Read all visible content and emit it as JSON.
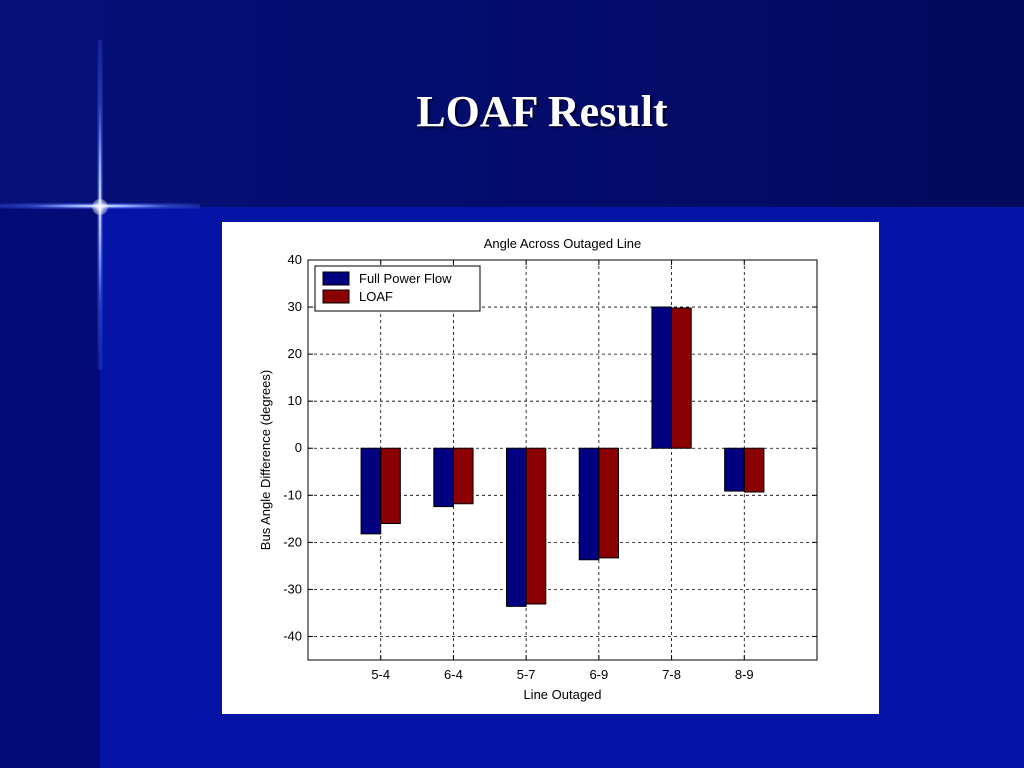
{
  "slide": {
    "title": "LOAF Result"
  },
  "colors": {
    "slide_background": "#0513a6",
    "series_full_power_flow": "#000080",
    "series_loaf": "#8b0000"
  },
  "chart_data": {
    "type": "bar",
    "title": "Angle Across Outaged Line",
    "xlabel": "Line Outaged",
    "ylabel": "Bus Angle Difference (degrees)",
    "categories": [
      "5-4",
      "6-4",
      "5-7",
      "6-9",
      "7-8",
      "8-9"
    ],
    "series": [
      {
        "name": "Full Power Flow",
        "values": [
          -18.2,
          -12.4,
          -33.6,
          -23.7,
          30.0,
          -9.1
        ]
      },
      {
        "name": "LOAF",
        "values": [
          -16.0,
          -11.8,
          -33.1,
          -23.3,
          29.8,
          -9.3
        ]
      }
    ],
    "ylim": [
      -45,
      40
    ],
    "yticks": [
      40,
      30,
      20,
      10,
      0,
      -10,
      -20,
      -30,
      -40
    ],
    "xlim": [
      0,
      7
    ],
    "grid": true,
    "legend_position": "top-left"
  }
}
